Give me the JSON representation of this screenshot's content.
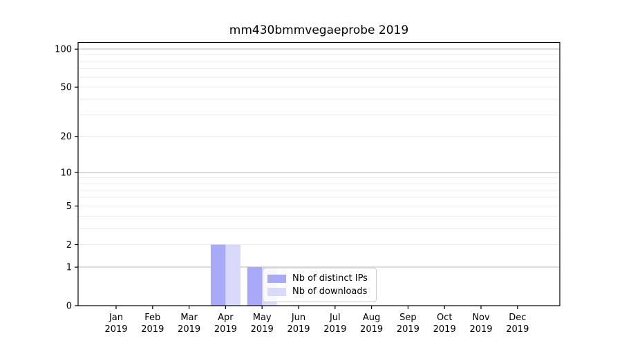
{
  "figure": {
    "background_color": "#ffffff",
    "axis_color": "#000000"
  },
  "chart_data": {
    "type": "bar",
    "title": "mm430bmmvegaeprobe 2019",
    "categories": [
      "Jan",
      "Feb",
      "Mar",
      "Apr",
      "May",
      "Jun",
      "Jul",
      "Aug",
      "Sep",
      "Oct",
      "Nov",
      "Dec"
    ],
    "x_tick_sublabel": "2019",
    "series": [
      {
        "name": "Nb of distinct IPs",
        "color": "#a8aaf8",
        "values": [
          0,
          0,
          0,
          2,
          1,
          0,
          0,
          0,
          0,
          0,
          0,
          0
        ]
      },
      {
        "name": "Nb of downloads",
        "color": "#d9dafa",
        "values": [
          0,
          0,
          0,
          2,
          1,
          0,
          0,
          0,
          0,
          0,
          0,
          0
        ]
      }
    ],
    "ylabel": "",
    "xlabel": "",
    "y_axis": {
      "scale": "log1p",
      "ticks": [
        0,
        1,
        2,
        5,
        10,
        20,
        50,
        100
      ],
      "range": [
        0,
        112
      ],
      "major_gridlines": [
        1,
        10,
        100
      ],
      "minor_gridlines": [
        2,
        3,
        4,
        5,
        6,
        7,
        8,
        9,
        20,
        30,
        40,
        50,
        60,
        70,
        80,
        90
      ]
    },
    "grid": {
      "visible": true,
      "major_color": "#b9b9b9",
      "minor_color": "#ececec"
    },
    "legend": {
      "position": "inside lower-center-left",
      "background": "rgba(255,255,255,0.8)",
      "border_color": "#cccccc"
    }
  }
}
